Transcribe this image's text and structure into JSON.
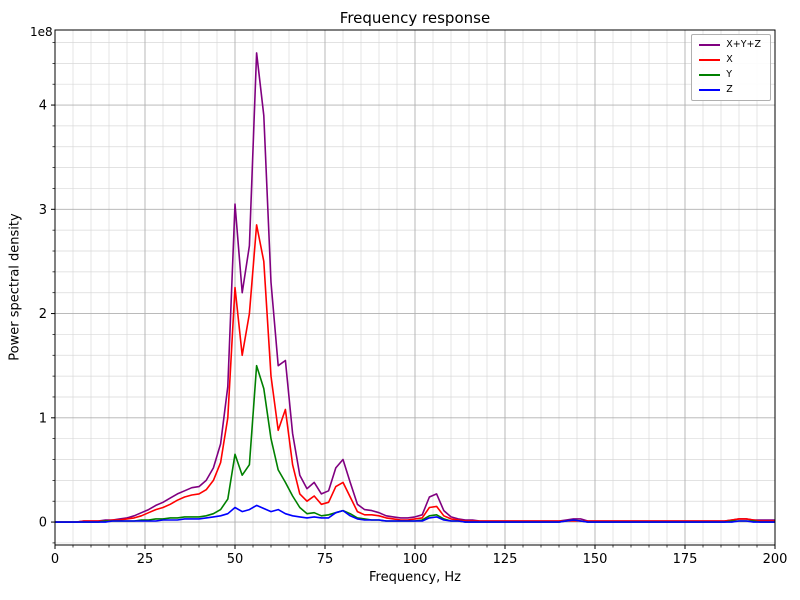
{
  "chart_data": {
    "type": "line",
    "title": "Frequency response",
    "xlabel": "Frequency, Hz",
    "ylabel": "Power spectral density",
    "y_offset_text": "1e8",
    "xlim": [
      0,
      200
    ],
    "ylim": [
      -0.22,
      4.72
    ],
    "x_major_ticks": [
      0,
      25,
      50,
      75,
      100,
      125,
      150,
      175,
      200
    ],
    "y_major_ticks": [
      0,
      1,
      2,
      3,
      4
    ],
    "x_minor_step": 5,
    "y_minor_step": 0.2,
    "grid": "both",
    "legend_position": "upper right",
    "units": "values are in 1e8 power spectral density units",
    "x": [
      0,
      2,
      4,
      6,
      8,
      10,
      12,
      14,
      16,
      18,
      20,
      22,
      24,
      26,
      28,
      30,
      32,
      34,
      36,
      38,
      40,
      42,
      44,
      46,
      48,
      50,
      52,
      54,
      56,
      58,
      60,
      62,
      64,
      66,
      68,
      70,
      72,
      74,
      76,
      78,
      80,
      82,
      84,
      86,
      88,
      90,
      92,
      94,
      96,
      98,
      100,
      102,
      104,
      106,
      108,
      110,
      112,
      114,
      116,
      118,
      120,
      122,
      124,
      126,
      128,
      130,
      132,
      134,
      136,
      138,
      140,
      142,
      144,
      146,
      148,
      150,
      152,
      154,
      156,
      158,
      160,
      162,
      164,
      166,
      168,
      170,
      172,
      174,
      176,
      178,
      180,
      182,
      184,
      186,
      188,
      190,
      192,
      194,
      196,
      198,
      200
    ],
    "series": [
      {
        "name": "X+Y+Z",
        "color": "#800080",
        "values": [
          0,
          0,
          0,
          0,
          0.01,
          0.01,
          0.01,
          0.02,
          0.02,
          0.03,
          0.04,
          0.06,
          0.09,
          0.12,
          0.16,
          0.19,
          0.23,
          0.27,
          0.3,
          0.33,
          0.34,
          0.4,
          0.52,
          0.75,
          1.3,
          3.05,
          2.2,
          2.65,
          4.5,
          3.9,
          2.3,
          1.5,
          1.55,
          0.85,
          0.45,
          0.32,
          0.38,
          0.27,
          0.3,
          0.52,
          0.6,
          0.38,
          0.17,
          0.12,
          0.11,
          0.09,
          0.06,
          0.05,
          0.04,
          0.04,
          0.05,
          0.07,
          0.24,
          0.27,
          0.11,
          0.05,
          0.03,
          0.02,
          0.02,
          0.01,
          0.01,
          0.01,
          0.01,
          0.01,
          0.01,
          0.01,
          0.01,
          0.01,
          0.01,
          0.01,
          0.01,
          0.02,
          0.03,
          0.03,
          0.01,
          0.01,
          0.01,
          0.01,
          0.01,
          0.01,
          0.01,
          0.01,
          0.01,
          0.01,
          0.01,
          0.01,
          0.01,
          0.01,
          0.01,
          0.01,
          0.01,
          0.01,
          0.01,
          0.01,
          0.02,
          0.03,
          0.03,
          0.02,
          0.02,
          0.02,
          0.02
        ]
      },
      {
        "name": "X",
        "color": "#ff0000",
        "values": [
          0,
          0,
          0,
          0,
          0.01,
          0.01,
          0.01,
          0.01,
          0.02,
          0.02,
          0.03,
          0.04,
          0.06,
          0.09,
          0.12,
          0.14,
          0.17,
          0.21,
          0.24,
          0.26,
          0.27,
          0.31,
          0.4,
          0.57,
          1.0,
          2.25,
          1.6,
          2.0,
          2.85,
          2.5,
          1.4,
          0.88,
          1.08,
          0.55,
          0.27,
          0.2,
          0.25,
          0.17,
          0.19,
          0.34,
          0.38,
          0.24,
          0.1,
          0.07,
          0.07,
          0.06,
          0.04,
          0.03,
          0.02,
          0.02,
          0.03,
          0.04,
          0.14,
          0.15,
          0.06,
          0.03,
          0.02,
          0.01,
          0.01,
          0.01,
          0.01,
          0.01,
          0.01,
          0.01,
          0.01,
          0.01,
          0.01,
          0.01,
          0.01,
          0.01,
          0.01,
          0.01,
          0.01,
          0.01,
          0.01,
          0.01,
          0.01,
          0.01,
          0.01,
          0.01,
          0.01,
          0.01,
          0.01,
          0.01,
          0.01,
          0.01,
          0.01,
          0.01,
          0.01,
          0.01,
          0.01,
          0.01,
          0.01,
          0.01,
          0.02,
          0.03,
          0.03,
          0.02,
          0.01,
          0.01,
          0.01
        ]
      },
      {
        "name": "Y",
        "color": "#008000",
        "values": [
          0,
          0,
          0,
          0,
          0,
          0,
          0,
          0.01,
          0.01,
          0.01,
          0.01,
          0.01,
          0.02,
          0.02,
          0.03,
          0.03,
          0.04,
          0.04,
          0.05,
          0.05,
          0.05,
          0.06,
          0.08,
          0.12,
          0.22,
          0.65,
          0.45,
          0.55,
          1.5,
          1.28,
          0.8,
          0.5,
          0.38,
          0.25,
          0.14,
          0.08,
          0.09,
          0.06,
          0.07,
          0.09,
          0.11,
          0.08,
          0.04,
          0.03,
          0.02,
          0.02,
          0.01,
          0.01,
          0.01,
          0.01,
          0.01,
          0.02,
          0.06,
          0.07,
          0.03,
          0.01,
          0.01,
          0,
          0,
          0,
          0,
          0,
          0,
          0,
          0,
          0,
          0,
          0,
          0,
          0,
          0,
          0.01,
          0.02,
          0.01,
          0,
          0,
          0,
          0,
          0,
          0,
          0,
          0,
          0,
          0,
          0,
          0,
          0,
          0,
          0,
          0,
          0,
          0,
          0,
          0,
          0.01,
          0.01,
          0.01,
          0.01,
          0,
          0,
          0
        ]
      },
      {
        "name": "Z",
        "color": "#0000ff",
        "values": [
          0,
          0,
          0,
          0,
          0,
          0,
          0,
          0,
          0.01,
          0.01,
          0.01,
          0.01,
          0.01,
          0.01,
          0.01,
          0.02,
          0.02,
          0.02,
          0.03,
          0.03,
          0.03,
          0.04,
          0.05,
          0.06,
          0.08,
          0.14,
          0.1,
          0.12,
          0.16,
          0.13,
          0.1,
          0.12,
          0.08,
          0.06,
          0.05,
          0.04,
          0.05,
          0.04,
          0.04,
          0.09,
          0.11,
          0.06,
          0.03,
          0.02,
          0.02,
          0.02,
          0.01,
          0.01,
          0.01,
          0.01,
          0.01,
          0.01,
          0.04,
          0.05,
          0.02,
          0.01,
          0.01,
          0,
          0,
          0,
          0,
          0,
          0,
          0,
          0,
          0,
          0,
          0,
          0,
          0,
          0,
          0.01,
          0.02,
          0.01,
          0,
          0,
          0,
          0,
          0,
          0,
          0,
          0,
          0,
          0,
          0,
          0,
          0,
          0,
          0,
          0,
          0,
          0,
          0,
          0,
          0,
          0.01,
          0.01,
          0,
          0,
          0,
          0
        ]
      }
    ]
  }
}
